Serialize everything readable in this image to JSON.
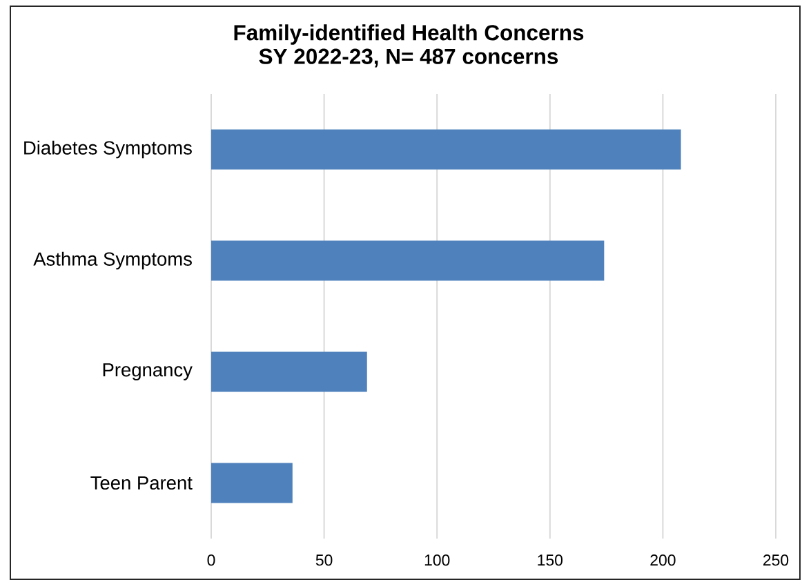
{
  "chart_data": {
    "type": "bar",
    "orientation": "horizontal",
    "title": "Family-identified Health Concerns",
    "subtitle": "SY 2022-23, N= 487 concerns",
    "categories": [
      "Diabetes Symptoms",
      "Asthma Symptoms",
      "Pregnancy",
      "Teen Parent"
    ],
    "values": [
      208,
      174,
      69,
      36
    ],
    "color": "#4f81bd",
    "xlim": [
      0,
      250
    ],
    "xticks": [
      0,
      50,
      100,
      150,
      200,
      250
    ],
    "grid": "x"
  }
}
